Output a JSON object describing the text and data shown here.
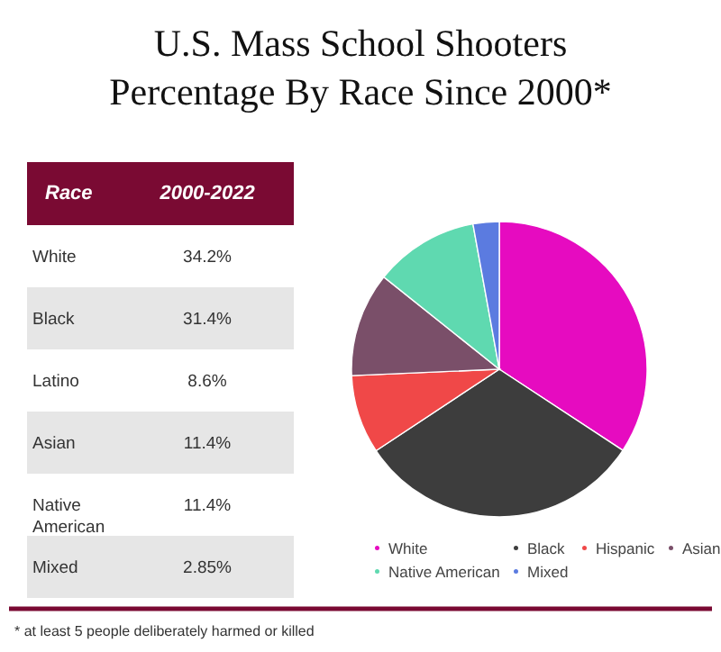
{
  "chart_data": [
    {
      "type": "other",
      "title": [
        "U.S. Mass School Shooters",
        "Percentage By Race Since 2000*"
      ],
      "xlabel": "Race",
      "ylabel": "2000-2022",
      "categories": [
        "White",
        "Black",
        "Latino",
        "Asian",
        "Native American",
        "Mixed"
      ],
      "values": [
        34.2,
        31.4,
        8.6,
        11.4,
        11.4,
        2.85
      ],
      "value_labels": [
        "34.2%",
        "31.4%",
        "8.6%",
        "11.4%",
        "11.4%",
        "2.85%"
      ],
      "annotations": [
        "* at least 5 people deliberately harmed or killed"
      ]
    },
    {
      "type": "pie",
      "categories": [
        "White",
        "Black",
        "Hispanic",
        "Asian",
        "Native American",
        "Mixed"
      ],
      "values": [
        34.2,
        31.4,
        8.6,
        11.4,
        11.4,
        2.85
      ],
      "colors": [
        "#e60bc0",
        "#3d3d3d",
        "#f04848",
        "#7a4f69",
        "#5fd9b0",
        "#5b7be0"
      ],
      "legend": "bottom"
    }
  ]
}
